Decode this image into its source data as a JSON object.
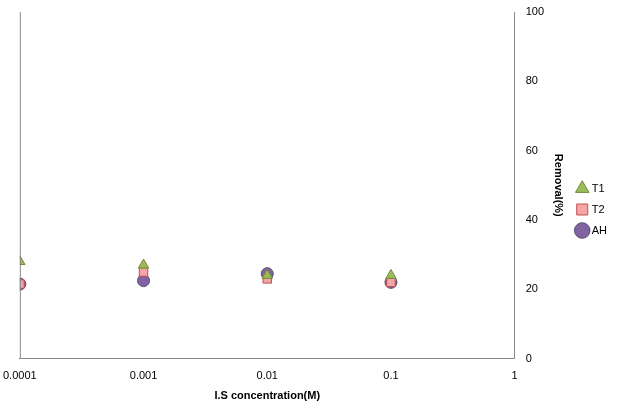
{
  "chart_data": {
    "type": "scatter",
    "x_label": "I.S concentration(M)",
    "y_label": "Removal(%)",
    "x": [
      0.0001,
      0.001,
      0.01,
      0.1
    ],
    "series": [
      {
        "name": "T1",
        "color": "#9bbb59",
        "marker": "triangle",
        "values": [
          28,
          27,
          24,
          24
        ]
      },
      {
        "name": "T2",
        "color": "#f4a6a6",
        "marker": "square",
        "values": [
          21.5,
          25,
          23,
          22
        ]
      },
      {
        "name": "AH",
        "color": "#8064a2",
        "marker": "circle",
        "values": [
          21.5,
          22.5,
          24.5,
          22
        ]
      }
    ],
    "log": "x",
    "xlim": [
      0.0001,
      1
    ],
    "xticks": [
      0.0001,
      0.001,
      0.01,
      0.1,
      1
    ],
    "ylim": [
      0,
      100
    ],
    "yticks": [
      0,
      20,
      40,
      60,
      80,
      100
    ],
    "grid": false,
    "legend": "right"
  }
}
